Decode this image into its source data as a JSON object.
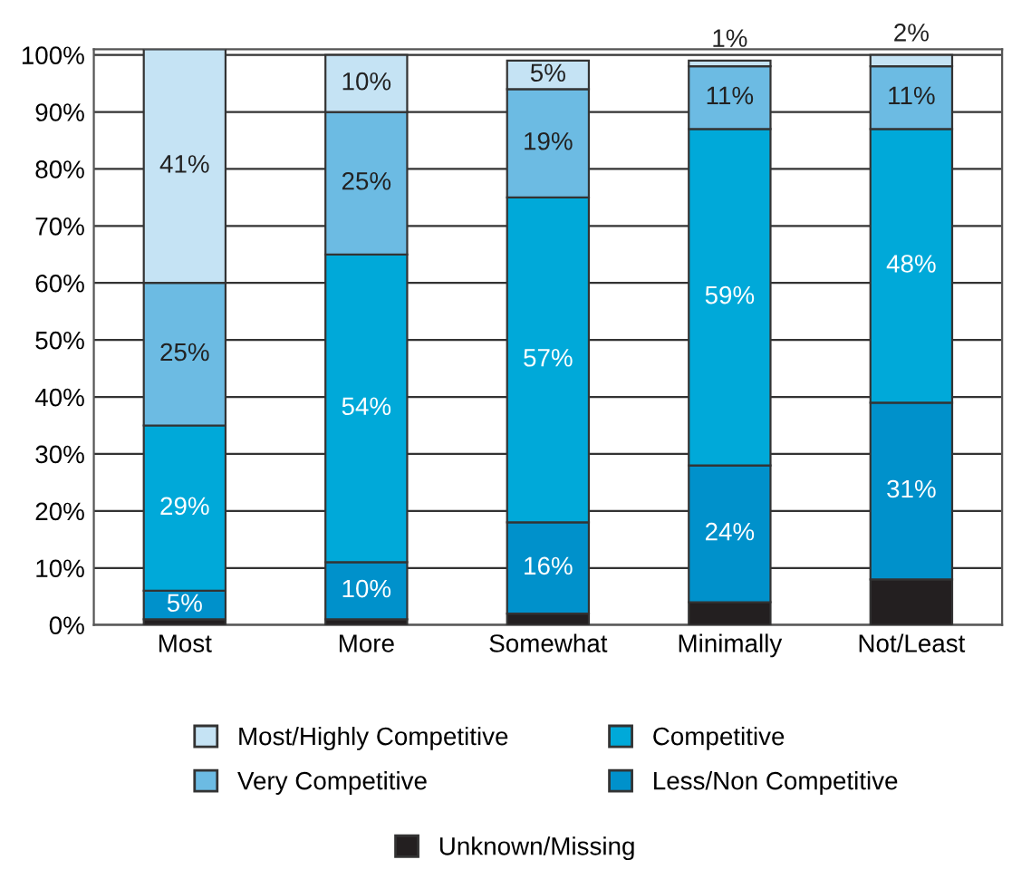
{
  "chart_data": {
    "type": "bar",
    "stacked": true,
    "categories": [
      "Most",
      "More",
      "Somewhat",
      "Minimally",
      "Not/Least"
    ],
    "series": [
      {
        "name": "Unknown/Missing",
        "color": "#231f20",
        "values": [
          1,
          1,
          2,
          4,
          8
        ],
        "value_labels": [
          null,
          null,
          null,
          null,
          null
        ]
      },
      {
        "name": "Less/Non Competitive",
        "color": "#0091cb",
        "values": [
          5,
          10,
          16,
          24,
          31
        ],
        "value_labels": [
          "5%",
          "10%",
          "16%",
          "24%",
          "31%"
        ]
      },
      {
        "name": "Competitive",
        "color": "#00a9d9",
        "values": [
          29,
          54,
          57,
          59,
          48
        ],
        "value_labels": [
          "29%",
          "54%",
          "57%",
          "59%",
          "48%"
        ]
      },
      {
        "name": "Very Competitive",
        "color": "#6cbbe3",
        "values": [
          25,
          25,
          19,
          11,
          11
        ],
        "value_labels": [
          "25%",
          "25%",
          "19%",
          "11%",
          "11%"
        ]
      },
      {
        "name": "Most/Highly Competitive",
        "color": "#c5e3f4",
        "values": [
          41,
          10,
          5,
          1,
          2
        ],
        "value_labels": [
          "41%",
          "10%",
          "5%",
          "1%",
          "2%"
        ]
      }
    ],
    "ylim": [
      0,
      101
    ],
    "yticks": [
      {
        "value": 0,
        "label": "0%"
      },
      {
        "value": 10,
        "label": "10%"
      },
      {
        "value": 20,
        "label": "20%"
      },
      {
        "value": 30,
        "label": "30%"
      },
      {
        "value": 40,
        "label": "40%"
      },
      {
        "value": 50,
        "label": "50%"
      },
      {
        "value": 60,
        "label": "60%"
      },
      {
        "value": 70,
        "label": "70%"
      },
      {
        "value": 80,
        "label": "80%"
      },
      {
        "value": 90,
        "label": "90%"
      },
      {
        "value": 100,
        "label": "100%"
      }
    ],
    "grid": "y",
    "legend": "bottom"
  }
}
